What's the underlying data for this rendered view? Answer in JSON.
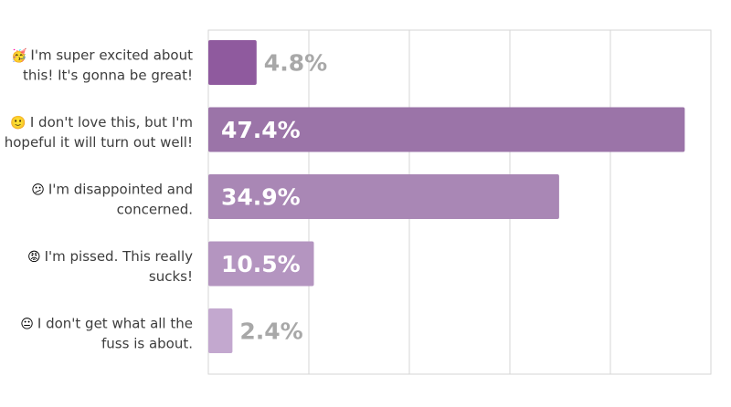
{
  "chart_data": {
    "type": "bar",
    "orientation": "horizontal",
    "categories": [
      {
        "emoji": "🥳",
        "lines": [
          "I'm super excited about",
          "this! It's gonna be great!"
        ]
      },
      {
        "emoji": "🙂",
        "lines": [
          "I don't love this, but I'm",
          "hopeful it will turn out well!"
        ]
      },
      {
        "emoji": "😕",
        "lines": [
          "I'm disappointed and",
          "concerned."
        ]
      },
      {
        "emoji": "😡",
        "lines": [
          "I'm pissed. This really",
          "sucks!"
        ]
      },
      {
        "emoji": "😐",
        "lines": [
          "I don't get what all the",
          "fuss is about."
        ]
      }
    ],
    "values": [
      4.8,
      47.4,
      34.9,
      10.5,
      2.4
    ],
    "value_labels": [
      "4.8%",
      "47.4%",
      "34.9%",
      "10.5%",
      "2.4%"
    ],
    "xlim": [
      0,
      50
    ],
    "grid": true,
    "colors": [
      "#8f5a9e",
      "#9b74a8",
      "#a987b5",
      "#b495c0",
      "#c3a8cf"
    ],
    "label_color_outside": "#a8a8a8",
    "label_color_inside": "#ffffff"
  }
}
